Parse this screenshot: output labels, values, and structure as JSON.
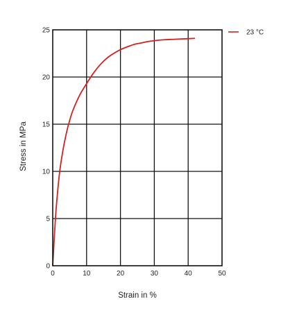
{
  "chart_data": {
    "type": "line",
    "title": "",
    "xlabel": "Strain in %",
    "ylabel": "Stress in MPa",
    "xlim": [
      0,
      50
    ],
    "ylim": [
      0,
      25
    ],
    "x_ticks": [
      "0",
      "10",
      "20",
      "30",
      "40",
      "50"
    ],
    "y_ticks": [
      "0",
      "5",
      "10",
      "15",
      "20",
      "25"
    ],
    "grid": true,
    "legend_position": "top-right",
    "series": [
      {
        "name": "23 °C",
        "color": "#d42020",
        "x": [
          0,
          0.5,
          1,
          2,
          3,
          4,
          5,
          6,
          8,
          10,
          12,
          14,
          16,
          18,
          20,
          22,
          24,
          26,
          28,
          30,
          33,
          36,
          39,
          42
        ],
        "y": [
          0,
          3.2,
          6.0,
          9.8,
          12.2,
          14.0,
          15.4,
          16.5,
          18.1,
          19.3,
          20.4,
          21.3,
          22.0,
          22.5,
          22.9,
          23.2,
          23.45,
          23.6,
          23.75,
          23.85,
          23.95,
          24.0,
          24.05,
          24.1
        ]
      }
    ]
  }
}
